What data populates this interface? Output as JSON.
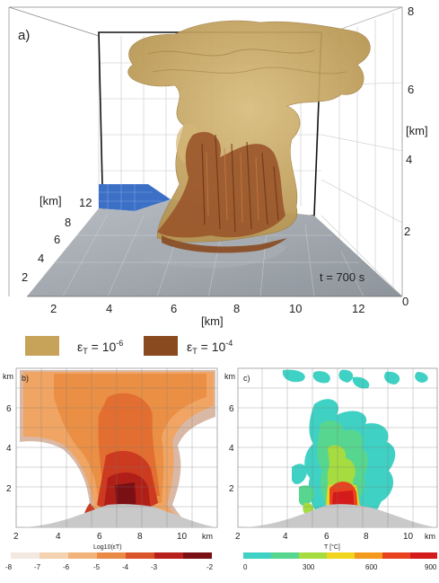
{
  "panel_a": {
    "label": "a)",
    "time_label": "t = 700 s",
    "x_axis": {
      "unit": "[km]",
      "ticks": [
        "2",
        "4",
        "6",
        "8",
        "10",
        "12"
      ]
    },
    "y_axis": {
      "unit": "[km]",
      "ticks": [
        "2",
        "4",
        "6",
        "8",
        "12"
      ]
    },
    "z_axis": {
      "unit": "[km]",
      "ticks": [
        "0",
        "2",
        "4",
        "6",
        "8"
      ]
    }
  },
  "legend": {
    "items": [
      {
        "symbol": "ε",
        "sub": "T",
        "text": " = 10",
        "exp": "-6",
        "color": "#c7a35a"
      },
      {
        "symbol": "ε",
        "sub": "T",
        "text": " = 10",
        "exp": "-4",
        "color": "#8a4a1f"
      }
    ]
  },
  "panel_b": {
    "label": "b)",
    "y_unit": "km",
    "y_ticks": [
      "2",
      "4",
      "6"
    ],
    "x_ticks": [
      "2",
      "4",
      "6",
      "8",
      "10"
    ],
    "x_unit": "km",
    "colorbar_label": "Log10(εT)",
    "colorbar_ticks": [
      "-8",
      "-7",
      "-6",
      "-5",
      "-4",
      "-3",
      "-2"
    ],
    "colorbar_colors": [
      "#f4e9e0",
      "#f3d2b1",
      "#f1b37a",
      "#e98a45",
      "#d9542a",
      "#b8201c",
      "#7a0f14"
    ]
  },
  "panel_c": {
    "label": "c)",
    "y_unit": "km",
    "y_ticks": [
      "2",
      "4",
      "6"
    ],
    "x_ticks": [
      "2",
      "4",
      "6",
      "8",
      "10"
    ],
    "x_unit": "km",
    "colorbar_label": "T [°C]",
    "colorbar_ticks": [
      "0",
      "300",
      "600",
      "900"
    ],
    "colorbar_colors": [
      "#3fd1c4",
      "#57d68f",
      "#a6dc3f",
      "#f0d51c",
      "#f39a1d",
      "#e8431e",
      "#d41a1a"
    ]
  }
}
